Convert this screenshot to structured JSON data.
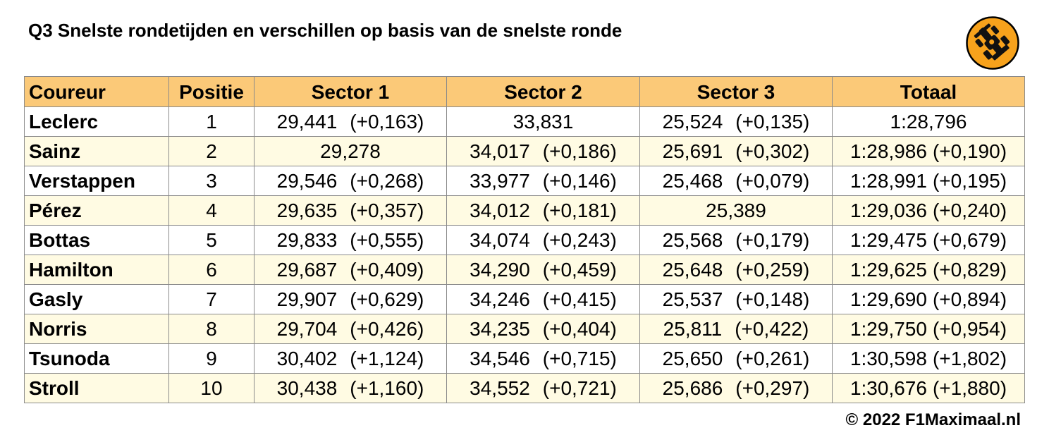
{
  "title": "Q3 Snelste rondetijden en verschillen op basis van de snelste ronde",
  "logo": {
    "icon": "race-car-icon",
    "fill": "#f7a21c",
    "stroke": "#000000"
  },
  "colors": {
    "header_bg": "#fbc978",
    "row_alt_bg": "#fffbe3",
    "border": "#8a8a8a"
  },
  "table": {
    "headers": [
      "Coureur",
      "Positie",
      "Sector 1",
      "Sector 2",
      "Sector 3",
      "Totaal"
    ],
    "rows": [
      {
        "driver": "Leclerc",
        "pos": "1",
        "s1": "29,441",
        "s1_gap": "(+0,163)",
        "s2": "33,831",
        "s2_gap": "",
        "s3": "25,524",
        "s3_gap": "(+0,135)",
        "total": "1:28,796",
        "total_gap": ""
      },
      {
        "driver": "Sainz",
        "pos": "2",
        "s1": "29,278",
        "s1_gap": "",
        "s2": "34,017",
        "s2_gap": "(+0,186)",
        "s3": "25,691",
        "s3_gap": "(+0,302)",
        "total": "1:28,986",
        "total_gap": "(+0,190)"
      },
      {
        "driver": "Verstappen",
        "pos": "3",
        "s1": "29,546",
        "s1_gap": "(+0,268)",
        "s2": "33,977",
        "s2_gap": "(+0,146)",
        "s3": "25,468",
        "s3_gap": "(+0,079)",
        "total": "1:28,991",
        "total_gap": "(+0,195)"
      },
      {
        "driver": "Pérez",
        "pos": "4",
        "s1": "29,635",
        "s1_gap": "(+0,357)",
        "s2": "34,012",
        "s2_gap": "(+0,181)",
        "s3": "25,389",
        "s3_gap": "",
        "total": "1:29,036",
        "total_gap": "(+0,240)"
      },
      {
        "driver": "Bottas",
        "pos": "5",
        "s1": "29,833",
        "s1_gap": "(+0,555)",
        "s2": "34,074",
        "s2_gap": "(+0,243)",
        "s3": "25,568",
        "s3_gap": "(+0,179)",
        "total": "1:29,475",
        "total_gap": "(+0,679)"
      },
      {
        "driver": "Hamilton",
        "pos": "6",
        "s1": "29,687",
        "s1_gap": "(+0,409)",
        "s2": "34,290",
        "s2_gap": "(+0,459)",
        "s3": "25,648",
        "s3_gap": "(+0,259)",
        "total": "1:29,625",
        "total_gap": "(+0,829)"
      },
      {
        "driver": "Gasly",
        "pos": "7",
        "s1": "29,907",
        "s1_gap": "(+0,629)",
        "s2": "34,246",
        "s2_gap": "(+0,415)",
        "s3": "25,537",
        "s3_gap": "(+0,148)",
        "total": "1:29,690",
        "total_gap": "(+0,894)"
      },
      {
        "driver": "Norris",
        "pos": "8",
        "s1": "29,704",
        "s1_gap": "(+0,426)",
        "s2": "34,235",
        "s2_gap": "(+0,404)",
        "s3": "25,811",
        "s3_gap": "(+0,422)",
        "total": "1:29,750",
        "total_gap": "(+0,954)"
      },
      {
        "driver": "Tsunoda",
        "pos": "9",
        "s1": "30,402",
        "s1_gap": "(+1,124)",
        "s2": "34,546",
        "s2_gap": "(+0,715)",
        "s3": "25,650",
        "s3_gap": "(+0,261)",
        "total": "1:30,598",
        "total_gap": "(+1,802)"
      },
      {
        "driver": "Stroll",
        "pos": "10",
        "s1": "30,438",
        "s1_gap": "(+1,160)",
        "s2": "34,552",
        "s2_gap": "(+0,721)",
        "s3": "25,686",
        "s3_gap": "(+0,297)",
        "total": "1:30,676",
        "total_gap": "(+1,880)"
      }
    ]
  },
  "footer": {
    "copyright": "© 2022 F1Maximaal.nl"
  }
}
